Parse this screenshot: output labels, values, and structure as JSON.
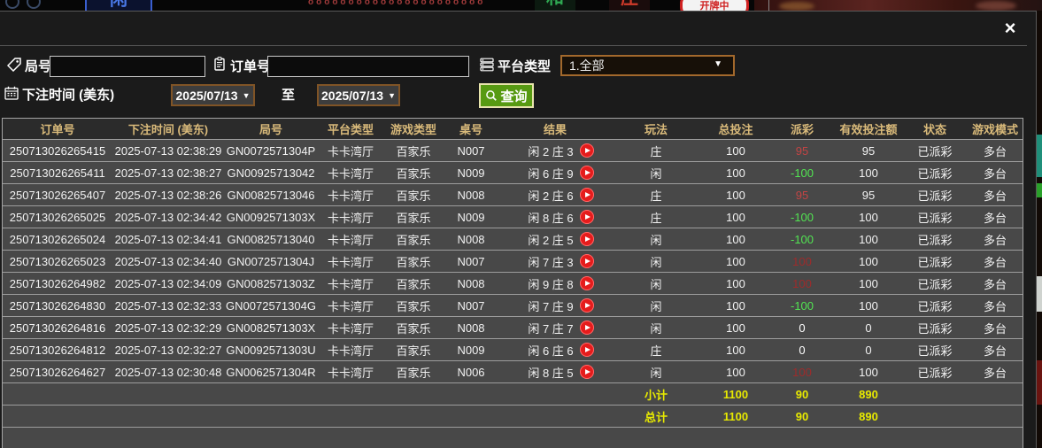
{
  "background": {
    "xian_tile": "闲",
    "he_tile": "和",
    "zhuang_tile": "庄",
    "dealing_badge": "开牌中",
    "dots_row": "oooooooooooooooooooooo"
  },
  "icons": {
    "close": "×",
    "dropdown_arrow": "▼"
  },
  "modal": {
    "filters": {
      "round_label": "局号",
      "round_value": "",
      "order_label": "订单号",
      "order_value": "",
      "platform_label": "平台类型",
      "platform_value": "1.全部",
      "bet_time_label": "下注时间 (美东)",
      "date_from": "2025/07/13",
      "to_label": "至",
      "date_to": "2025/07/13",
      "query_label": "查询"
    },
    "table": {
      "headers": [
        "订单号",
        "下注时间 (美东)",
        "局号",
        "平台类型",
        "游戏类型",
        "桌号",
        "结果",
        "玩法",
        "总投注",
        "派彩",
        "有效投注额",
        "状态",
        "游戏模式"
      ],
      "rows": [
        {
          "order_no": "250713026265415",
          "bet_time": "2025-07-13 02:38:29",
          "round_no": "GN0072571304P",
          "platform": "卡卡湾厅",
          "game_type": "百家乐",
          "table_no": "N007",
          "result": "闲 2 庄 3",
          "play": "庄",
          "total_bet": "100",
          "payout": "95",
          "payout_color": "#c24444",
          "valid_bet": "95",
          "status": "已派彩",
          "mode": "多台"
        },
        {
          "order_no": "250713026265411",
          "bet_time": "2025-07-13 02:38:27",
          "round_no": "GN00925713042",
          "platform": "卡卡湾厅",
          "game_type": "百家乐",
          "table_no": "N009",
          "result": "闲 6 庄 9",
          "play": "闲",
          "total_bet": "100",
          "payout": "-100",
          "payout_color": "#52e452",
          "valid_bet": "100",
          "status": "已派彩",
          "mode": "多台"
        },
        {
          "order_no": "250713026265407",
          "bet_time": "2025-07-13 02:38:26",
          "round_no": "GN00825713046",
          "platform": "卡卡湾厅",
          "game_type": "百家乐",
          "table_no": "N008",
          "result": "闲 2 庄 6",
          "play": "庄",
          "total_bet": "100",
          "payout": "95",
          "payout_color": "#c24444",
          "valid_bet": "95",
          "status": "已派彩",
          "mode": "多台"
        },
        {
          "order_no": "250713026265025",
          "bet_time": "2025-07-13 02:34:42",
          "round_no": "GN0092571303X",
          "platform": "卡卡湾厅",
          "game_type": "百家乐",
          "table_no": "N009",
          "result": "闲 8 庄 6",
          "play": "庄",
          "total_bet": "100",
          "payout": "-100",
          "payout_color": "#52e452",
          "valid_bet": "100",
          "status": "已派彩",
          "mode": "多台"
        },
        {
          "order_no": "250713026265024",
          "bet_time": "2025-07-13 02:34:41",
          "round_no": "GN00825713040",
          "platform": "卡卡湾厅",
          "game_type": "百家乐",
          "table_no": "N008",
          "result": "闲 2 庄 5",
          "play": "闲",
          "total_bet": "100",
          "payout": "-100",
          "payout_color": "#52e452",
          "valid_bet": "100",
          "status": "已派彩",
          "mode": "多台"
        },
        {
          "order_no": "250713026265023",
          "bet_time": "2025-07-13 02:34:40",
          "round_no": "GN0072571304J",
          "platform": "卡卡湾厅",
          "game_type": "百家乐",
          "table_no": "N007",
          "result": "闲 7 庄 3",
          "play": "闲",
          "total_bet": "100",
          "payout": "100",
          "payout_color": "#9e2b2b",
          "valid_bet": "100",
          "status": "已派彩",
          "mode": "多台"
        },
        {
          "order_no": "250713026264982",
          "bet_time": "2025-07-13 02:34:09",
          "round_no": "GN0082571303Z",
          "platform": "卡卡湾厅",
          "game_type": "百家乐",
          "table_no": "N008",
          "result": "闲 9 庄 8",
          "play": "闲",
          "total_bet": "100",
          "payout": "100",
          "payout_color": "#9e2b2b",
          "valid_bet": "100",
          "status": "已派彩",
          "mode": "多台"
        },
        {
          "order_no": "250713026264830",
          "bet_time": "2025-07-13 02:32:33",
          "round_no": "GN0072571304G",
          "platform": "卡卡湾厅",
          "game_type": "百家乐",
          "table_no": "N007",
          "result": "闲 7 庄 9",
          "play": "闲",
          "total_bet": "100",
          "payout": "-100",
          "payout_color": "#52e452",
          "valid_bet": "100",
          "status": "已派彩",
          "mode": "多台"
        },
        {
          "order_no": "250713026264816",
          "bet_time": "2025-07-13 02:32:29",
          "round_no": "GN0082571303X",
          "platform": "卡卡湾厅",
          "game_type": "百家乐",
          "table_no": "N008",
          "result": "闲 7 庄 7",
          "play": "闲",
          "total_bet": "100",
          "payout": "0",
          "payout_color": "#ffffff",
          "valid_bet": "0",
          "status": "已派彩",
          "mode": "多台"
        },
        {
          "order_no": "250713026264812",
          "bet_time": "2025-07-13 02:32:27",
          "round_no": "GN0092571303U",
          "platform": "卡卡湾厅",
          "game_type": "百家乐",
          "table_no": "N009",
          "result": "闲 6 庄 6",
          "play": "庄",
          "total_bet": "100",
          "payout": "0",
          "payout_color": "#ffffff",
          "valid_bet": "0",
          "status": "已派彩",
          "mode": "多台"
        },
        {
          "order_no": "250713026264627",
          "bet_time": "2025-07-13 02:30:48",
          "round_no": "GN0062571304R",
          "platform": "卡卡湾厅",
          "game_type": "百家乐",
          "table_no": "N006",
          "result": "闲 8 庄 5",
          "play": "闲",
          "total_bet": "100",
          "payout": "100",
          "payout_color": "#9e2b2b",
          "valid_bet": "100",
          "status": "已派彩",
          "mode": "多台"
        }
      ],
      "subtotal": {
        "label": "小计",
        "total_bet": "1100",
        "payout": "90",
        "valid_bet": "890"
      },
      "total": {
        "label": "总计",
        "total_bet": "1100",
        "payout": "90",
        "valid_bet": "890"
      }
    }
  },
  "colors": {
    "accent_gold_header": "#d9ba7a",
    "summary_yellow": "#e8ea00",
    "win_red": "#c24444",
    "loss_green": "#52e452",
    "status_green": "#3bdc3b",
    "query_button_green": "#579a12"
  }
}
